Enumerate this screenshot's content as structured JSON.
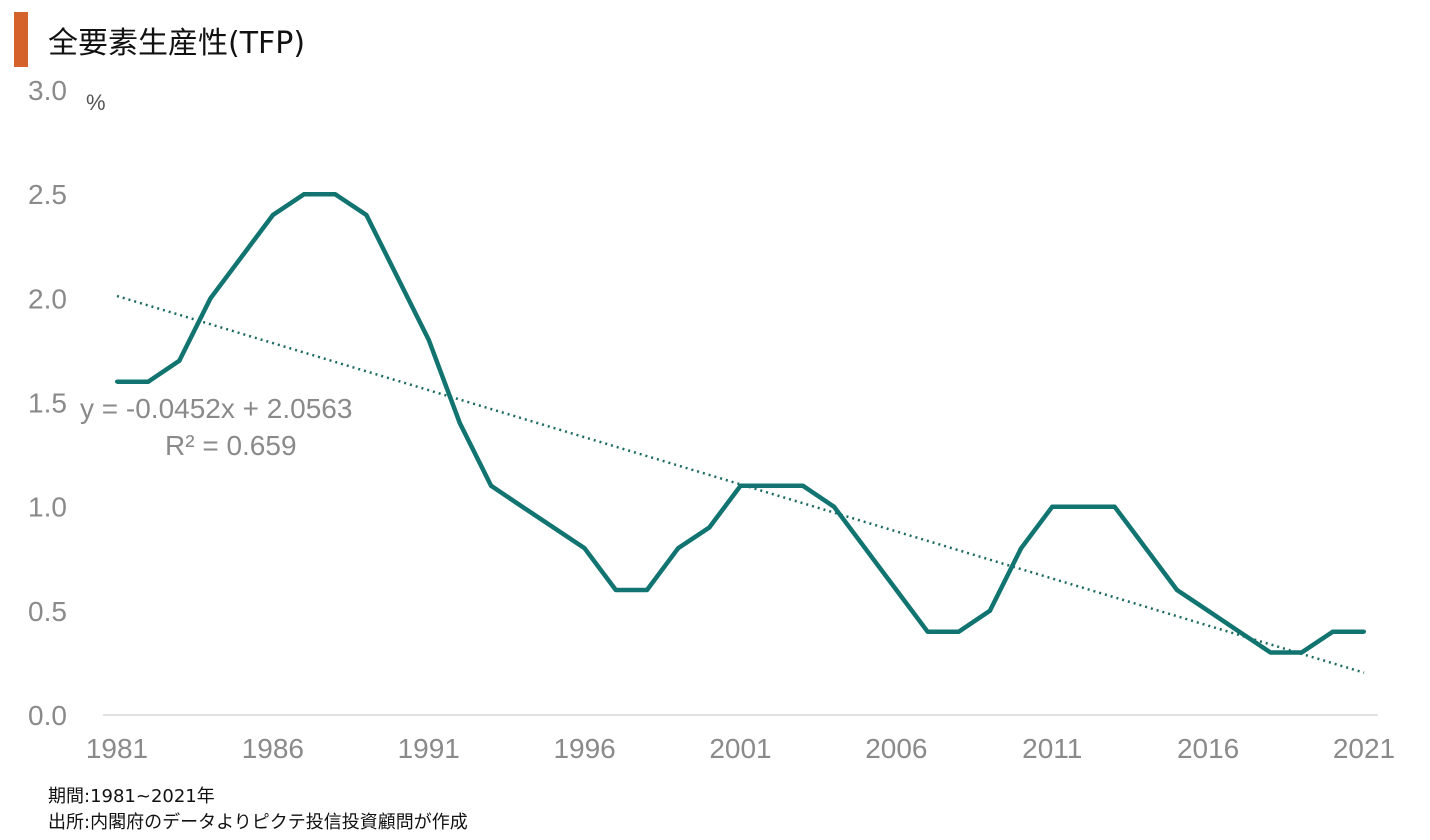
{
  "chart_data": {
    "type": "line",
    "title": "全要素生産性(TFP)",
    "ylabel": "%",
    "ylim": [
      0,
      3.0
    ],
    "yticks": [
      "0.0",
      "0.5",
      "1.0",
      "1.5",
      "2.0",
      "2.5",
      "3.0"
    ],
    "xlim": [
      1981,
      2021
    ],
    "xticks": [
      "1981",
      "1986",
      "1991",
      "1996",
      "2001",
      "2006",
      "2011",
      "2016",
      "2021"
    ],
    "grid": false,
    "series": [
      {
        "x": [
          1981,
          1982,
          1983,
          1984,
          1985,
          1986,
          1987,
          1988,
          1989,
          1990,
          1991,
          1992,
          1993,
          1994,
          1995,
          1996,
          1997,
          1998,
          1999,
          2000,
          2001,
          2002,
          2003,
          2004,
          2005,
          2006,
          2007,
          2008,
          2009,
          2010,
          2011,
          2012,
          2013,
          2014,
          2015,
          2016,
          2017,
          2018,
          2019,
          2020,
          2021
        ],
        "values": [
          1.6,
          1.6,
          1.7,
          2.0,
          2.2,
          2.4,
          2.5,
          2.5,
          2.4,
          2.1,
          1.8,
          1.4,
          1.1,
          1.0,
          0.9,
          0.8,
          0.6,
          0.6,
          0.8,
          0.9,
          1.1,
          1.1,
          1.1,
          1.0,
          0.8,
          0.6,
          0.4,
          0.4,
          0.5,
          0.8,
          1.0,
          1.0,
          1.0,
          0.8,
          0.6,
          0.5,
          0.4,
          0.3,
          0.3,
          0.4,
          0.4
        ],
        "color": "#127470"
      }
    ],
    "trendline": {
      "slope": -0.0452,
      "intercept": 2.0563,
      "equation": "y = -0.0452x + 2.0563",
      "r2": "R² = 0.659",
      "color": "#1b6b60"
    }
  },
  "notes": {
    "period": "期間:1981~2021年",
    "source": "出所:内閣府のデータよりピクテ投信投資顧問が作成"
  },
  "colors": {
    "accent": "#d4622a",
    "line": "#127470",
    "axis": "#d9d9d9"
  }
}
